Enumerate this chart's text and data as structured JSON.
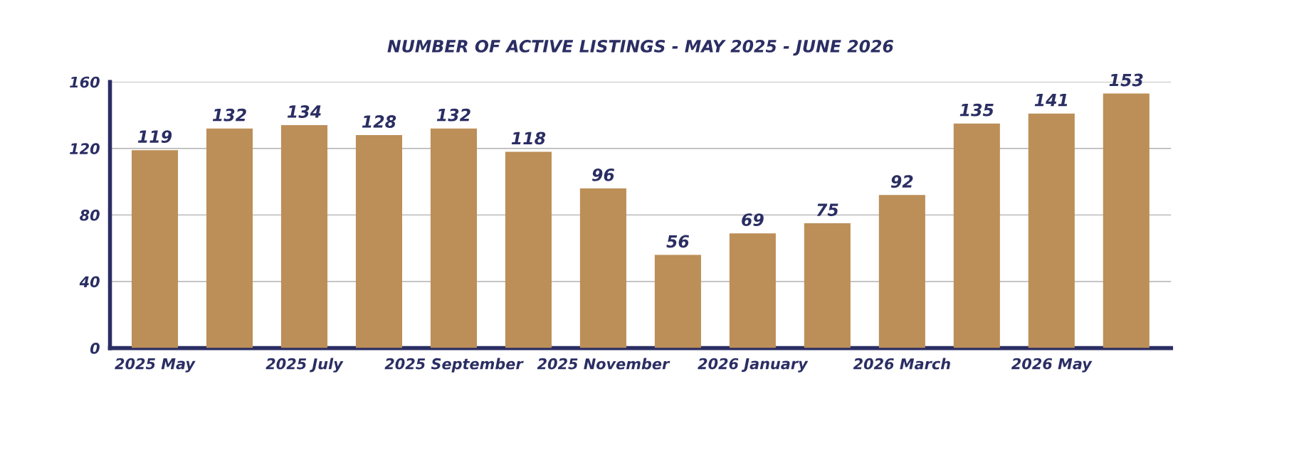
{
  "chart_data": {
    "type": "bar",
    "title": "NUMBER OF ACTIVE LISTINGS - MAY 2025 - JUNE 2026",
    "categories": [
      "2025 May",
      null,
      "2025 July",
      null,
      "2025 September",
      null,
      "2025 November",
      null,
      "2026 January",
      null,
      "2026 March",
      null,
      "2026 May",
      null
    ],
    "values": [
      119,
      132,
      134,
      128,
      132,
      118,
      96,
      56,
      69,
      75,
      92,
      135,
      141,
      153
    ],
    "color": "#bc8f58",
    "ylim": [
      0,
      160
    ],
    "yticks": [
      0,
      40,
      80,
      120,
      160
    ],
    "grid": "y",
    "data_labels": true,
    "legend": false
  }
}
